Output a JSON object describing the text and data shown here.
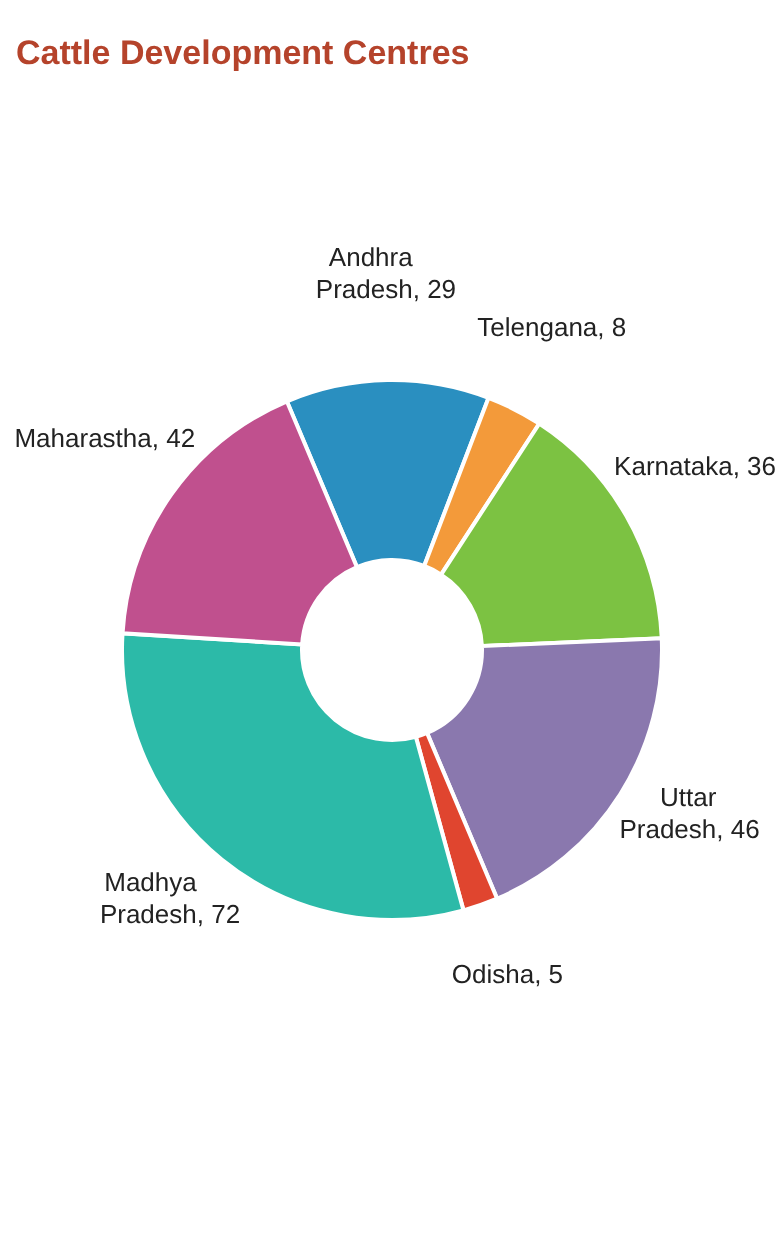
{
  "chart_data": {
    "type": "donut",
    "title": "Cattle Development Centres",
    "categories": [
      "Andhra Pradesh",
      "Telengana",
      "Karnataka",
      "Uttar Pradesh",
      "Odisha",
      "Madhya Pradesh",
      "Maharastha"
    ],
    "values": [
      29,
      8,
      36,
      46,
      5,
      72,
      42
    ],
    "colors": [
      "#2a8fc0",
      "#f39a3a",
      "#7cc242",
      "#8a78ae",
      "#e0452f",
      "#2cbaa8",
      "#c0508e"
    ],
    "value_labels": [
      ", 29",
      ", 8",
      ", 36",
      ", 46",
      ", 5",
      ", 72",
      ", 42"
    ],
    "legend": false
  }
}
